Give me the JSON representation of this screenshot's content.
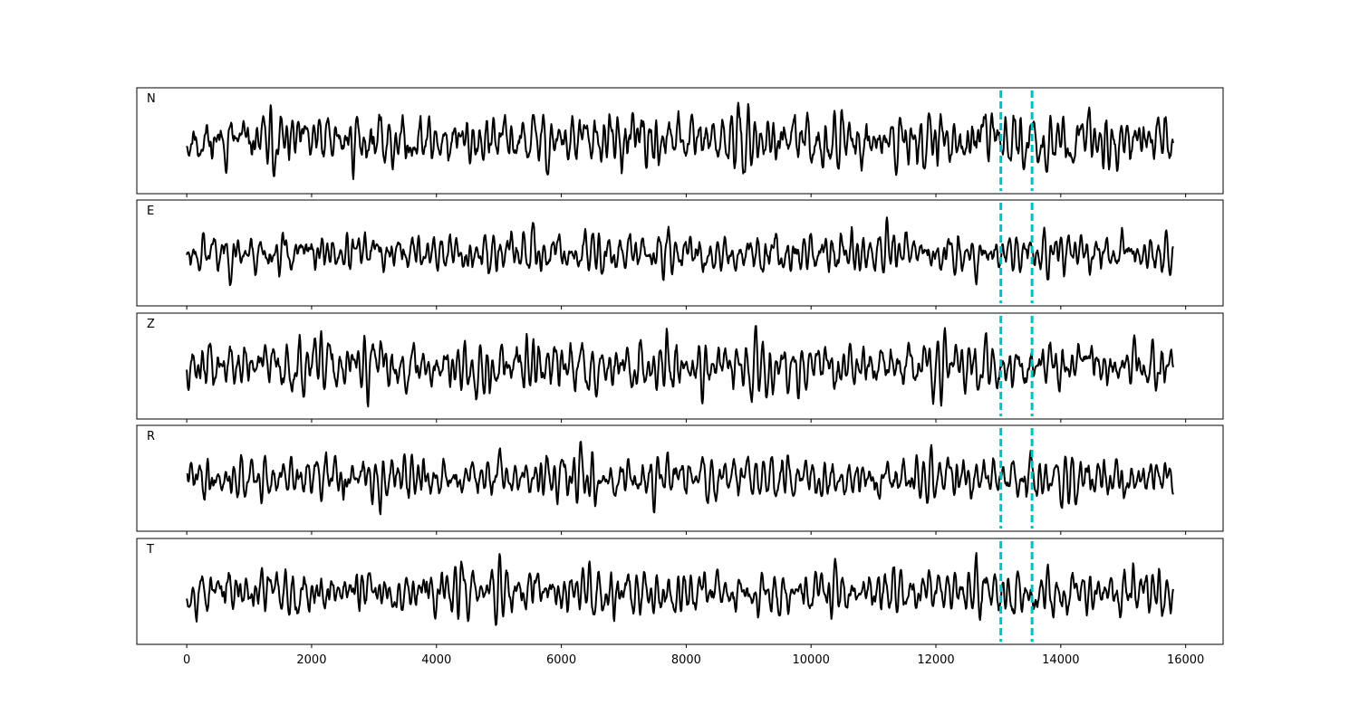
{
  "chart_data": {
    "type": "line",
    "panels": [
      {
        "label": "N",
        "seed": 11,
        "amplitude": 0.78
      },
      {
        "label": "E",
        "seed": 23,
        "amplitude": 0.72
      },
      {
        "label": "Z",
        "seed": 37,
        "amplitude": 0.82
      },
      {
        "label": "R",
        "seed": 41,
        "amplitude": 0.74
      },
      {
        "label": "T",
        "seed": 53,
        "amplitude": 0.78
      }
    ],
    "x_start": 0,
    "x_end": 15800,
    "xlim": [
      -800,
      16600
    ],
    "x_ticks": [
      0,
      2000,
      4000,
      6000,
      8000,
      10000,
      12000,
      14000,
      16000
    ],
    "x_tick_labels": [
      "0",
      "2000",
      "4000",
      "6000",
      "8000",
      "10000",
      "12000",
      "14000",
      "16000"
    ],
    "markers": [
      13040,
      13540
    ],
    "colors": {
      "trace": "#000000",
      "marker": "#00bfbf",
      "frame": "#000000"
    },
    "grid": false
  }
}
